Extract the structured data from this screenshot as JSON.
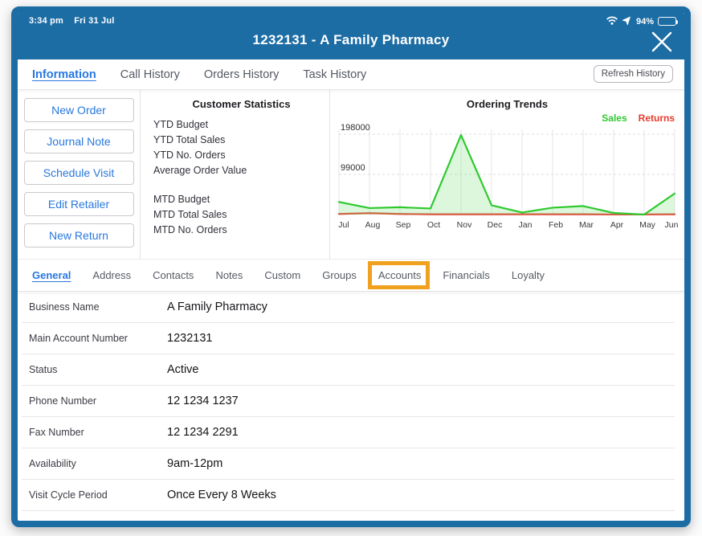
{
  "status_bar": {
    "time": "3:34 pm",
    "date": "Fri 31 Jul",
    "battery_percent": "94%"
  },
  "title_bar": {
    "title": "1232131 - A Family Pharmacy"
  },
  "tabs": {
    "items": [
      {
        "label": "Information",
        "active": true
      },
      {
        "label": "Call History",
        "active": false
      },
      {
        "label": "Orders History",
        "active": false
      },
      {
        "label": "Task History",
        "active": false
      }
    ],
    "refresh_button_label": "Refresh History"
  },
  "actions": {
    "buttons": [
      "New Order",
      "Journal Note",
      "Schedule Visit",
      "Edit Retailer",
      "New Return"
    ]
  },
  "customer_statistics": {
    "title": "Customer Statistics",
    "ytd_labels": [
      "YTD Budget",
      "YTD Total Sales",
      "YTD No. Orders",
      "Average Order Value"
    ],
    "mtd_labels": [
      "MTD Budget",
      "MTD Total Sales",
      "MTD No. Orders"
    ]
  },
  "chart_data": {
    "type": "line",
    "title": "Ordering Trends",
    "categories": [
      "Jul",
      "Aug",
      "Sep",
      "Oct",
      "Nov",
      "Dec",
      "Jan",
      "Feb",
      "Mar",
      "Apr",
      "May",
      "Jun"
    ],
    "series": [
      {
        "name": "Sales",
        "color": "#2fc92f",
        "fill": "rgba(130,225,130,0.28)",
        "values": [
          31000,
          16000,
          18000,
          15000,
          196000,
          23000,
          5000,
          17000,
          21000,
          4000,
          0,
          52000
        ]
      },
      {
        "name": "Returns",
        "color": "#e53b2c",
        "fill": null,
        "values": [
          1500,
          3500,
          1500,
          800,
          800,
          800,
          800,
          800,
          800,
          400,
          400,
          800
        ]
      }
    ],
    "yticks": [
      99000,
      198000
    ],
    "ylim": [
      0,
      215000
    ],
    "grid": true,
    "legend_position": "top-right"
  },
  "sub_tabs": {
    "items": [
      "General",
      "Address",
      "Contacts",
      "Notes",
      "Custom",
      "Groups",
      "Accounts",
      "Financials",
      "Loyalty"
    ],
    "active": "General",
    "highlighted": "Accounts",
    "highlight_color": "#efa11f"
  },
  "details": {
    "rows": [
      {
        "label": "Business Name",
        "value": "A Family Pharmacy"
      },
      {
        "label": "Main Account Number",
        "value": "1232131"
      },
      {
        "label": "Status",
        "value": "Active"
      },
      {
        "label": "Phone Number",
        "value": "12 1234 1237"
      },
      {
        "label": "Fax Number",
        "value": "12 1234 2291"
      },
      {
        "label": "Availability",
        "value": "9am-12pm"
      },
      {
        "label": "Visit Cycle Period",
        "value": "Once Every 8 Weeks"
      }
    ]
  },
  "colors": {
    "header_blue": "#1d6da5",
    "accent_blue": "#2878df",
    "sales_green": "#2fc92f",
    "returns_red": "#e53b2c",
    "highlight_orange": "#efa11f"
  }
}
